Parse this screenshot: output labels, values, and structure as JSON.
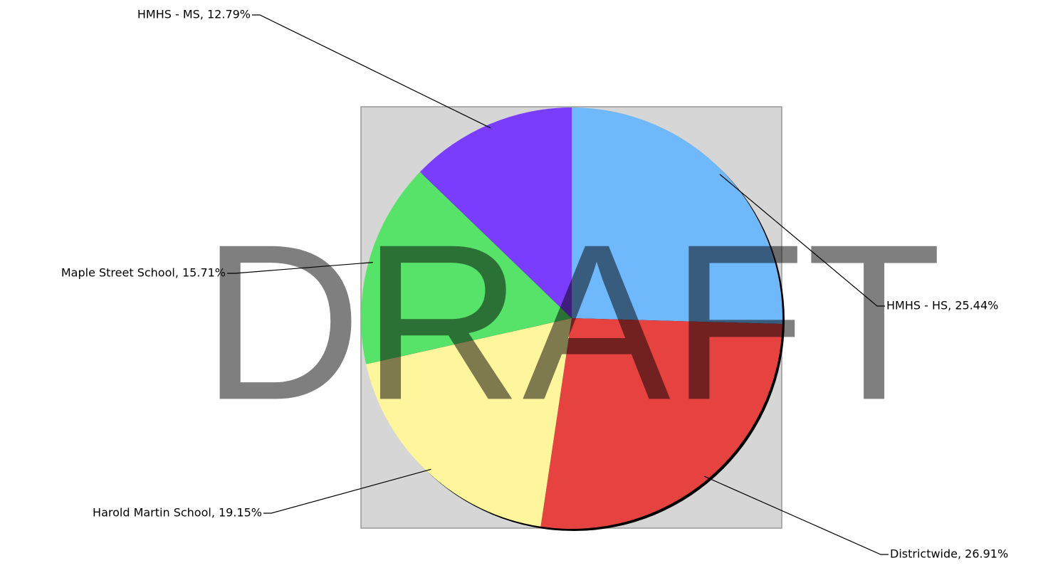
{
  "chart_data": {
    "type": "pie",
    "values": [
      25.44,
      26.91,
      19.15,
      15.71,
      12.79
    ],
    "value_labels": [
      "HMHS - HS, 25.44%",
      "Districtwide, 26.91%",
      "Harold Martin School, 19.15%",
      "Maple Street School, 15.71%",
      "HMHS - MS, 12.79%"
    ],
    "colors": [
      "#6fb8fb",
      "#e64340",
      "#fff59d",
      "#57e26a",
      "#7b3dfd"
    ],
    "watermark": "DRAFT"
  }
}
